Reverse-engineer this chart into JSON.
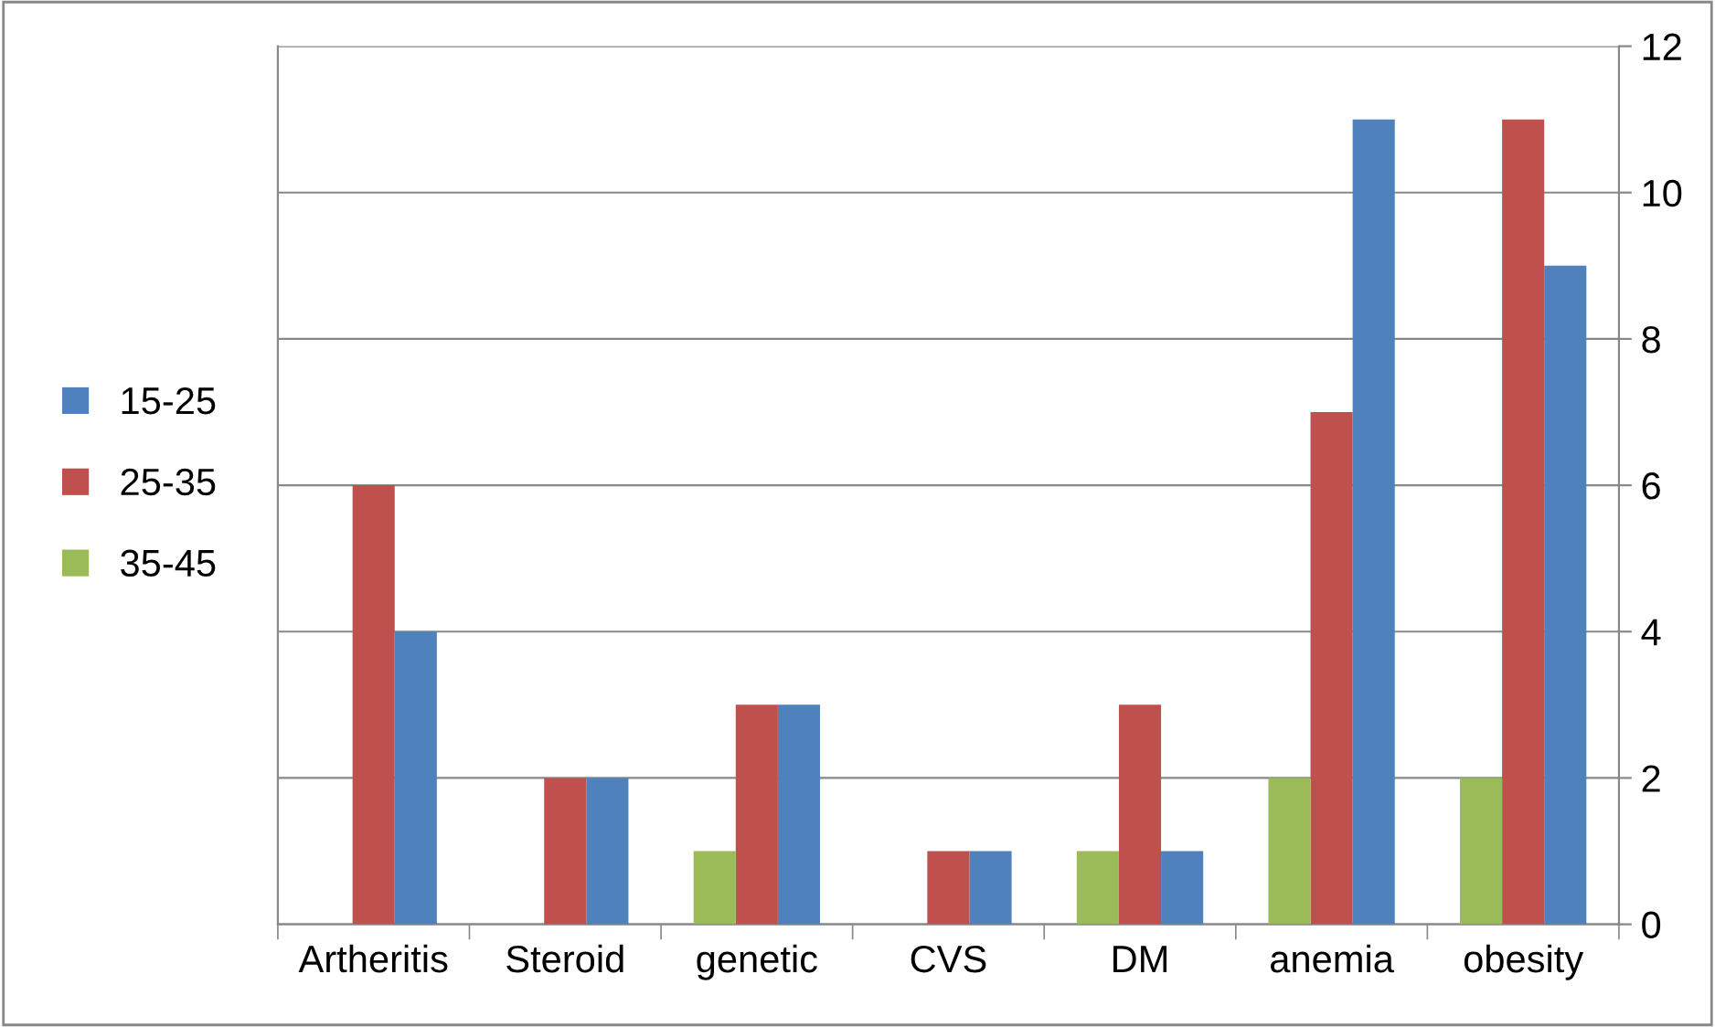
{
  "chart_data": {
    "type": "bar",
    "categories": [
      "Artheritis",
      "Steroid",
      "genetic",
      "CVS",
      "DM",
      "anemia",
      "obesity"
    ],
    "series": [
      {
        "name": "15-25",
        "color": "#4f81bd",
        "values": [
          4,
          2,
          3,
          1,
          1,
          11,
          9
        ]
      },
      {
        "name": "25-35",
        "color": "#c0504d",
        "values": [
          6,
          2,
          3,
          1,
          3,
          7,
          11
        ]
      },
      {
        "name": "35-45",
        "color": "#9bbb59",
        "values": [
          null,
          null,
          1,
          null,
          1,
          2,
          2
        ]
      }
    ],
    "ylim": [
      0,
      12
    ],
    "yticks": [
      0,
      2,
      4,
      6,
      8,
      10,
      12
    ],
    "grid": "y",
    "legend": "left"
  }
}
